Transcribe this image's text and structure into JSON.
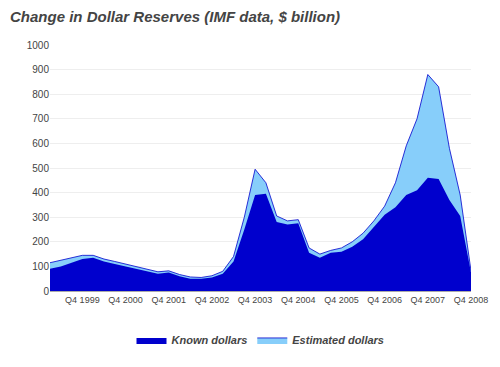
{
  "chart_data": {
    "type": "area",
    "title": "Change in Dollar Reserves (IMF data, $ billion)",
    "categories": [
      null,
      null,
      null,
      "Q4 1999",
      null,
      null,
      null,
      "Q4 2000",
      null,
      null,
      null,
      "Q4 2001",
      null,
      null,
      null,
      "Q4 2002",
      null,
      null,
      null,
      "Q4 2003",
      null,
      null,
      null,
      "Q4 2004",
      null,
      null,
      null,
      "Q4 2005",
      null,
      null,
      null,
      "Q4 2006",
      null,
      null,
      null,
      "Q4 2007",
      null,
      null,
      null,
      "Q4 2008"
    ],
    "series": [
      {
        "name": "Known dollars",
        "color": "#0000CD",
        "values": [
          90,
          100,
          115,
          130,
          135,
          120,
          110,
          100,
          90,
          80,
          70,
          75,
          60,
          50,
          50,
          55,
          70,
          120,
          250,
          390,
          395,
          280,
          270,
          275,
          155,
          135,
          155,
          160,
          180,
          210,
          260,
          310,
          340,
          390,
          410,
          460,
          455,
          370,
          305,
          75
        ]
      },
      {
        "name": "Estimated dollars",
        "color": "#87CEFA",
        "values": [
          115,
          125,
          135,
          145,
          145,
          130,
          120,
          110,
          100,
          88,
          78,
          82,
          67,
          57,
          55,
          62,
          80,
          140,
          300,
          495,
          440,
          305,
          285,
          290,
          175,
          150,
          165,
          175,
          200,
          235,
          285,
          345,
          440,
          590,
          700,
          880,
          830,
          580,
          390,
          82
        ]
      }
    ],
    "ylim": [
      0,
      1000
    ],
    "yticks": [
      0,
      100,
      200,
      300,
      400,
      500,
      600,
      700,
      800,
      900,
      1000
    ],
    "grid": true
  }
}
